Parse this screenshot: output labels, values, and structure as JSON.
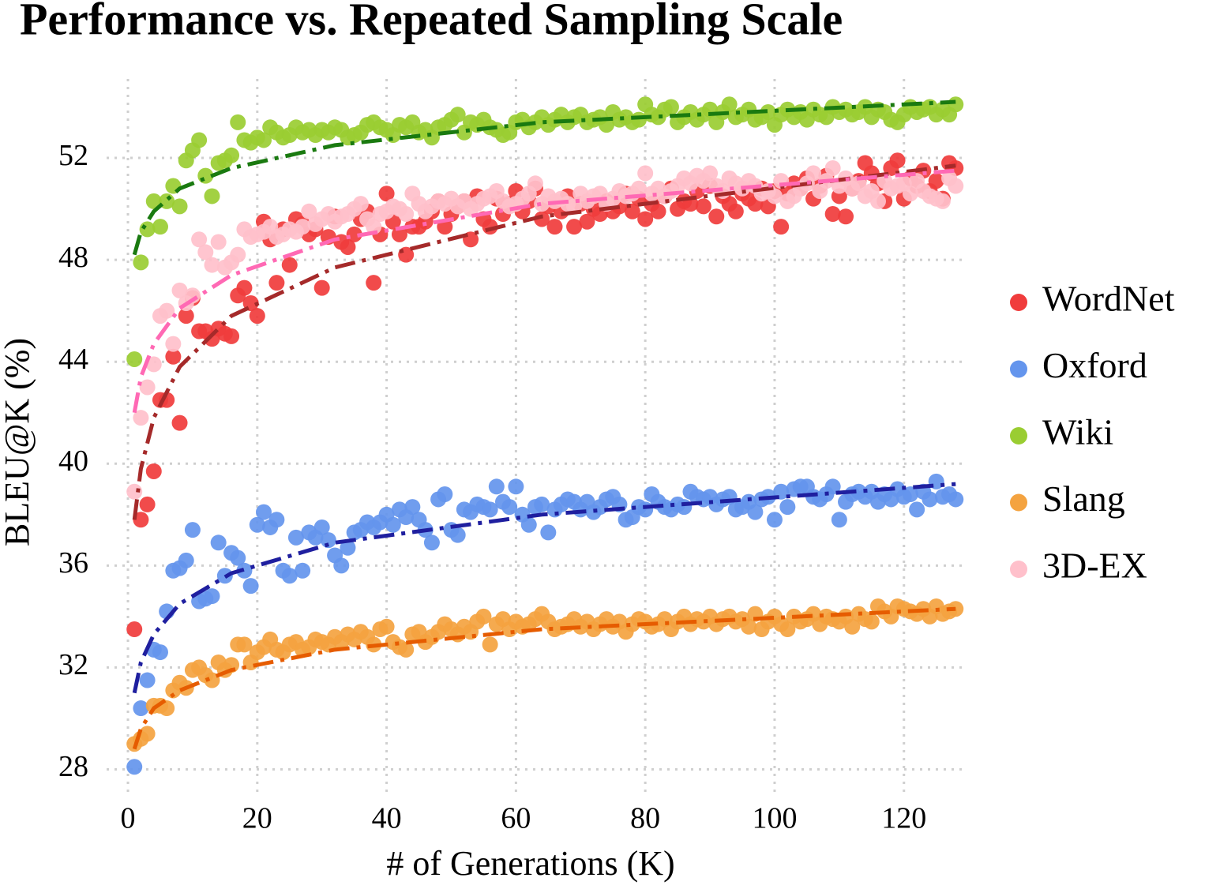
{
  "chart_data": {
    "type": "scatter",
    "title": "Performance vs. Repeated Sampling Scale",
    "x_label": "# of Generations (K)",
    "y_label": "BLEU@K (%)",
    "xlim": [
      -3.3,
      129.8
    ],
    "ylim": [
      26.9,
      55.1
    ],
    "xticks": [
      0,
      20,
      40,
      60,
      80,
      100,
      120
    ],
    "yticks": [
      28,
      32,
      36,
      40,
      44,
      48,
      52
    ],
    "grid": true,
    "legend": "right",
    "x": [
      1,
      2,
      3,
      4,
      5,
      6,
      7,
      8,
      9,
      10,
      11,
      12,
      13,
      14,
      15,
      16,
      17,
      18,
      19,
      20,
      21,
      22,
      23,
      24,
      25,
      26,
      27,
      28,
      29,
      30,
      31,
      32,
      33,
      34,
      35,
      36,
      37,
      38,
      39,
      40,
      41,
      42,
      43,
      44,
      45,
      46,
      47,
      48,
      49,
      50,
      51,
      52,
      53,
      54,
      55,
      56,
      57,
      58,
      59,
      60,
      61,
      62,
      63,
      64,
      65,
      66,
      67,
      68,
      69,
      70,
      71,
      72,
      73,
      74,
      75,
      76,
      77,
      78,
      79,
      80,
      81,
      82,
      83,
      84,
      85,
      86,
      87,
      88,
      89,
      90,
      91,
      92,
      93,
      94,
      95,
      96,
      97,
      98,
      99,
      100,
      101,
      102,
      103,
      104,
      105,
      106,
      107,
      108,
      109,
      110,
      111,
      112,
      113,
      114,
      115,
      116,
      117,
      118,
      119,
      120,
      121,
      122,
      123,
      124,
      125,
      126,
      127,
      128
    ],
    "fit_x": [
      1,
      2,
      4,
      8,
      16,
      32,
      64,
      128
    ],
    "series": [
      {
        "name": "WordNet",
        "color": "#f03c3c",
        "fit_color": "#a52a2a",
        "fit": [
          37.8,
          39.8,
          41.8,
          43.8,
          45.8,
          47.7,
          49.7,
          51.7
        ],
        "values": [
          33.5,
          37.8,
          38.4,
          39.7,
          42.5,
          42.5,
          44.2,
          41.6,
          45.8,
          46.5,
          45.2,
          45.2,
          44.9,
          45.3,
          45.1,
          45.0,
          46.6,
          46.9,
          46.3,
          45.8,
          49.5,
          48.8,
          47.1,
          49.2,
          47.8,
          49.6,
          49.4,
          49.0,
          49.2,
          46.9,
          48.9,
          49.7,
          48.7,
          48.5,
          49.0,
          49.6,
          49.9,
          47.1,
          49.0,
          50.6,
          49.5,
          49.0,
          48.2,
          49.3,
          49.3,
          49.5,
          49.9,
          50.3,
          49.3,
          49.8,
          50.1,
          50.3,
          48.8,
          50.5,
          49.6,
          49.3,
          50.4,
          49.8,
          50.2,
          50.7,
          49.9,
          50.3,
          50.8,
          49.6,
          50.1,
          49.3,
          49.9,
          50.5,
          49.3,
          50.2,
          49.5,
          50.0,
          49.8,
          50.3,
          49.9,
          50.1,
          50.6,
          49.9,
          50.4,
          49.6,
          50.2,
          49.9,
          50.5,
          50.8,
          50.0,
          50.3,
          50.2,
          50.7,
          50.1,
          50.9,
          49.7,
          50.5,
          50.2,
          49.9,
          50.6,
          50.4,
          50.2,
          50.8,
          50.1,
          50.7,
          49.3,
          50.6,
          51.0,
          50.8,
          51.2,
          50.4,
          50.9,
          51.3,
          49.8,
          50.5,
          49.7,
          50.8,
          51.1,
          51.8,
          51.4,
          51.0,
          50.3,
          51.6,
          51.9,
          50.4,
          51.2,
          50.9,
          51.5,
          50.7,
          51.1,
          50.4,
          51.8,
          51.6
        ]
      },
      {
        "name": "Oxford",
        "color": "#6495ed",
        "fit_color": "#1f1f9f",
        "fit": [
          31.0,
          32.2,
          33.3,
          34.5,
          35.7,
          36.9,
          38.0,
          39.2
        ],
        "values": [
          28.1,
          30.4,
          31.5,
          32.7,
          32.6,
          34.2,
          35.8,
          35.9,
          36.2,
          37.4,
          34.6,
          34.7,
          34.8,
          36.9,
          35.6,
          36.5,
          36.3,
          35.8,
          35.2,
          37.6,
          38.1,
          37.5,
          37.8,
          35.8,
          35.6,
          37.1,
          35.8,
          37.3,
          37.1,
          37.5,
          37.0,
          36.4,
          36.0,
          36.7,
          37.3,
          37.4,
          37.7,
          37.5,
          37.7,
          38.0,
          37.6,
          38.2,
          37.9,
          38.3,
          37.8,
          37.4,
          36.9,
          38.6,
          38.8,
          37.4,
          37.2,
          38.2,
          38.1,
          38.4,
          38.3,
          38.2,
          39.1,
          38.5,
          38.3,
          39.1,
          38.0,
          37.6,
          38.3,
          38.4,
          37.3,
          38.2,
          38.4,
          38.6,
          38.5,
          38.2,
          38.5,
          38.1,
          38.3,
          38.6,
          38.7,
          38.4,
          37.8,
          37.9,
          38.3,
          38.2,
          38.8,
          38.5,
          38.3,
          38.2,
          38.4,
          38.3,
          38.9,
          38.7,
          38.6,
          38.7,
          38.4,
          38.6,
          38.7,
          38.2,
          38.3,
          38.5,
          38.1,
          38.6,
          38.7,
          37.8,
          38.9,
          38.3,
          39.0,
          39.1,
          39.1,
          38.7,
          38.6,
          38.8,
          39.1,
          37.8,
          38.5,
          38.8,
          38.9,
          38.7,
          38.9,
          38.5,
          38.8,
          38.6,
          39.0,
          38.7,
          38.8,
          38.2,
          38.9,
          38.6,
          39.3,
          38.7,
          38.8,
          38.6
        ]
      },
      {
        "name": "Wiki",
        "color": "#9acd32",
        "fit_color": "#1a7a10",
        "fit": [
          48.2,
          49.1,
          49.9,
          50.8,
          51.6,
          52.5,
          53.4,
          54.2
        ],
        "values": [
          44.1,
          47.9,
          49.2,
          50.3,
          49.3,
          50.3,
          50.9,
          50.1,
          51.9,
          52.3,
          52.7,
          51.3,
          50.5,
          51.8,
          51.9,
          52.1,
          53.4,
          52.7,
          52.6,
          52.8,
          52.7,
          53.2,
          53.0,
          52.8,
          52.9,
          53.2,
          53.0,
          53.1,
          52.9,
          53.1,
          53.0,
          53.2,
          53.1,
          52.8,
          52.9,
          53.0,
          53.3,
          53.4,
          53.2,
          53.1,
          52.9,
          53.3,
          53.2,
          53.4,
          53.0,
          53.1,
          52.8,
          53.2,
          53.3,
          53.5,
          53.7,
          53.0,
          53.4,
          53.3,
          53.5,
          53.2,
          53.1,
          52.9,
          53.0,
          53.4,
          53.5,
          53.2,
          53.4,
          53.6,
          53.3,
          53.5,
          53.7,
          53.4,
          53.6,
          53.7,
          53.4,
          53.5,
          53.6,
          53.3,
          53.8,
          53.5,
          53.6,
          53.4,
          53.5,
          54.1,
          53.7,
          53.6,
          53.9,
          54.0,
          53.4,
          53.6,
          53.8,
          53.5,
          53.7,
          53.9,
          53.4,
          53.8,
          54.1,
          53.6,
          53.7,
          53.9,
          53.5,
          53.6,
          53.8,
          53.3,
          53.7,
          53.9,
          53.6,
          53.8,
          53.5,
          53.9,
          53.7,
          53.6,
          54.0,
          53.8,
          53.9,
          53.7,
          53.8,
          54.0,
          53.6,
          53.9,
          53.8,
          53.5,
          53.4,
          53.7,
          54.0,
          53.8,
          53.9,
          54.0,
          53.7,
          53.9,
          53.7,
          54.1
        ]
      },
      {
        "name": "Slang",
        "color": "#f4a340",
        "fit_color": "#e65c00",
        "fit": [
          28.8,
          29.6,
          30.4,
          31.1,
          31.9,
          32.7,
          33.5,
          34.3
        ],
        "values": [
          29.0,
          29.2,
          29.4,
          30.5,
          30.5,
          30.4,
          31.1,
          31.4,
          31.2,
          31.9,
          32.0,
          31.7,
          31.5,
          32.2,
          31.9,
          32.1,
          32.9,
          32.9,
          32.2,
          32.6,
          32.8,
          33.1,
          32.7,
          32.6,
          32.9,
          33.0,
          32.7,
          32.8,
          33.1,
          33.0,
          32.9,
          33.2,
          33.0,
          33.3,
          33.1,
          33.4,
          33.2,
          32.9,
          33.5,
          33.6,
          33.0,
          32.8,
          32.7,
          33.3,
          33.4,
          33.0,
          33.2,
          33.4,
          33.7,
          33.5,
          33.3,
          33.6,
          33.4,
          33.8,
          34.0,
          32.9,
          33.7,
          33.9,
          33.5,
          33.8,
          33.6,
          33.7,
          33.9,
          34.1,
          33.8,
          33.5,
          33.6,
          33.7,
          33.9,
          33.6,
          33.8,
          33.5,
          33.7,
          33.9,
          33.6,
          33.8,
          33.4,
          33.7,
          33.9,
          33.8,
          33.6,
          33.7,
          33.9,
          33.5,
          33.8,
          34.0,
          33.7,
          33.9,
          33.8,
          34.0,
          33.7,
          33.9,
          34.0,
          33.8,
          33.9,
          33.6,
          34.1,
          33.5,
          33.8,
          34.0,
          33.7,
          33.5,
          34.0,
          33.8,
          33.9,
          34.1,
          33.7,
          34.0,
          33.9,
          33.8,
          34.0,
          33.6,
          34.1,
          33.9,
          33.8,
          34.4,
          34.2,
          34.0,
          34.4,
          34.3,
          34.2,
          34.1,
          34.3,
          34.0,
          34.4,
          34.1,
          34.2,
          34.3
        ]
      },
      {
        "name": "3D-EX",
        "color": "#ffc0cb",
        "fit_color": "#ff69b4",
        "fit": [
          42.0,
          43.4,
          44.7,
          46.1,
          47.4,
          48.8,
          50.2,
          51.5
        ],
        "values": [
          38.9,
          41.8,
          43.0,
          43.9,
          45.8,
          46.0,
          44.7,
          46.8,
          46.3,
          46.6,
          48.8,
          48.3,
          47.8,
          48.7,
          47.7,
          47.9,
          48.2,
          49.2,
          48.9,
          49.0,
          49.1,
          49.3,
          48.9,
          49.0,
          49.2,
          49.1,
          49.3,
          49.9,
          49.4,
          49.6,
          49.8,
          49.5,
          49.7,
          49.8,
          50.0,
          50.2,
          49.6,
          49.3,
          49.8,
          49.9,
          50.1,
          50.0,
          49.8,
          50.6,
          50.2,
          49.9,
          50.1,
          50.3,
          50.2,
          50.4,
          50.1,
          50.3,
          50.0,
          50.2,
          50.4,
          50.5,
          50.7,
          50.3,
          50.1,
          50.2,
          50.4,
          50.6,
          51.0,
          50.2,
          50.5,
          50.3,
          50.4,
          50.2,
          50.1,
          50.6,
          50.3,
          50.5,
          50.6,
          50.2,
          50.4,
          50.7,
          50.5,
          50.6,
          50.8,
          51.4,
          50.6,
          50.8,
          50.5,
          50.7,
          50.9,
          51.2,
          51.0,
          51.3,
          51.1,
          51.4,
          50.9,
          50.7,
          51.2,
          51.0,
          50.8,
          51.1,
          50.9,
          50.6,
          50.7,
          50.5,
          51.1,
          50.3,
          50.5,
          50.8,
          51.0,
          51.4,
          50.7,
          51.1,
          51.6,
          50.9,
          51.2,
          50.8,
          51.0,
          50.5,
          50.7,
          50.3,
          51.1,
          50.8,
          50.9,
          51.0,
          50.6,
          51.1,
          50.7,
          50.5,
          50.4,
          50.3,
          51.2,
          50.9
        ]
      }
    ]
  }
}
